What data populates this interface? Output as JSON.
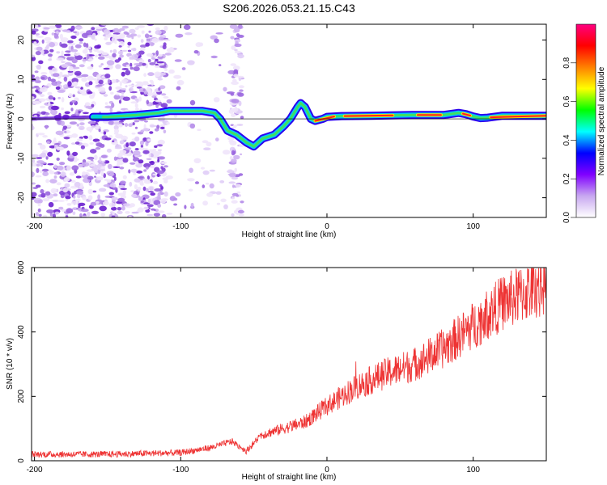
{
  "title": "S206.2026.053.21.15.C43",
  "chart_data": [
    {
      "type": "heatmap",
      "name": "spectrogram",
      "xlabel": "Height of straight line (km)",
      "ylabel": "Frequency (Hz)",
      "xlim": [
        -202,
        150
      ],
      "ylim": [
        -25,
        24
      ],
      "xticks": [
        -200,
        -100,
        0,
        100
      ],
      "yticks": [
        -20,
        -10,
        0,
        10,
        20
      ],
      "colorbar": {
        "label": "Normalized spectral amplitude",
        "range": [
          0,
          1
        ],
        "ticks": [
          0.0,
          0.2,
          0.4,
          0.6,
          0.8
        ],
        "colors": [
          "#ffffff",
          "#c8a8f0",
          "#8000ff",
          "#0000ff",
          "#00ffff",
          "#00ff00",
          "#ffff00",
          "#ff8000",
          "#ff0000",
          "#ff0080"
        ]
      },
      "ridge": {
        "x": [
          -160,
          -150,
          -130,
          -115,
          -108,
          -100,
          -85,
          -77,
          -73,
          -68,
          -62,
          -55,
          -50,
          -44,
          -36,
          -30,
          -25,
          -20,
          -18,
          -15,
          -11,
          -8,
          -3,
          0,
          10,
          30,
          60,
          80,
          90,
          95,
          100,
          105,
          110,
          120,
          150
        ],
        "y": [
          0.5,
          0.5,
          1.0,
          1.5,
          2.0,
          2.0,
          2.0,
          1.5,
          0,
          -3,
          -4,
          -6,
          -7,
          -5,
          -4,
          -2,
          0,
          3,
          4,
          3,
          0,
          -0.5,
          0,
          0.5,
          0.7,
          0.8,
          1.0,
          1.0,
          1.5,
          1.2,
          0.6,
          0.2,
          0.3,
          0.8,
          0.8
        ]
      }
    },
    {
      "type": "line",
      "name": "snr",
      "xlabel": "Height of straight line (km)",
      "ylabel": "SNR (10 * v/v)",
      "xlim": [
        -202,
        150
      ],
      "ylim": [
        0,
        600
      ],
      "xticks": [
        -200,
        -100,
        0,
        100
      ],
      "yticks": [
        0,
        200,
        400,
        600
      ],
      "color": "#ee3333",
      "trend": {
        "x": [
          -202,
          -150,
          -100,
          -80,
          -65,
          -55,
          -45,
          -30,
          -15,
          0,
          20,
          40,
          60,
          80,
          100,
          120,
          150
        ],
        "y": [
          20,
          20,
          25,
          40,
          60,
          30,
          80,
          100,
          120,
          170,
          230,
          270,
          300,
          350,
          420,
          490,
          550
        ]
      }
    }
  ]
}
